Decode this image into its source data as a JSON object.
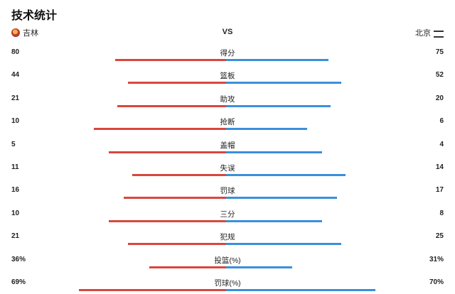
{
  "title": "技术统计",
  "teams": {
    "home": "吉林",
    "vs": "VS",
    "away": "北京"
  },
  "colors": {
    "home": "#d9473d",
    "away": "#3b8fdc"
  },
  "stats": [
    {
      "label": "得分",
      "home": "80",
      "away": "75",
      "home_share": 0.52,
      "away_share": 0.48
    },
    {
      "label": "篮板",
      "home": "44",
      "away": "52",
      "home_share": 0.46,
      "away_share": 0.54
    },
    {
      "label": "助攻",
      "home": "21",
      "away": "20",
      "home_share": 0.51,
      "away_share": 0.49
    },
    {
      "label": "抢断",
      "home": "10",
      "away": "6",
      "home_share": 0.62,
      "away_share": 0.38
    },
    {
      "label": "盖帽",
      "home": "5",
      "away": "4",
      "home_share": 0.55,
      "away_share": 0.45
    },
    {
      "label": "失误",
      "home": "11",
      "away": "14",
      "home_share": 0.44,
      "away_share": 0.56
    },
    {
      "label": "罚球",
      "home": "16",
      "away": "17",
      "home_share": 0.48,
      "away_share": 0.52
    },
    {
      "label": "三分",
      "home": "10",
      "away": "8",
      "home_share": 0.55,
      "away_share": 0.45
    },
    {
      "label": "犯规",
      "home": "21",
      "away": "25",
      "home_share": 0.46,
      "away_share": 0.54
    },
    {
      "label": "投篮(%)",
      "home": "36%",
      "away": "31%",
      "home_share": 0.36,
      "away_share": 0.31
    },
    {
      "label": "罚球(%)",
      "home": "69%",
      "away": "70%",
      "home_share": 0.69,
      "away_share": 0.7
    }
  ]
}
